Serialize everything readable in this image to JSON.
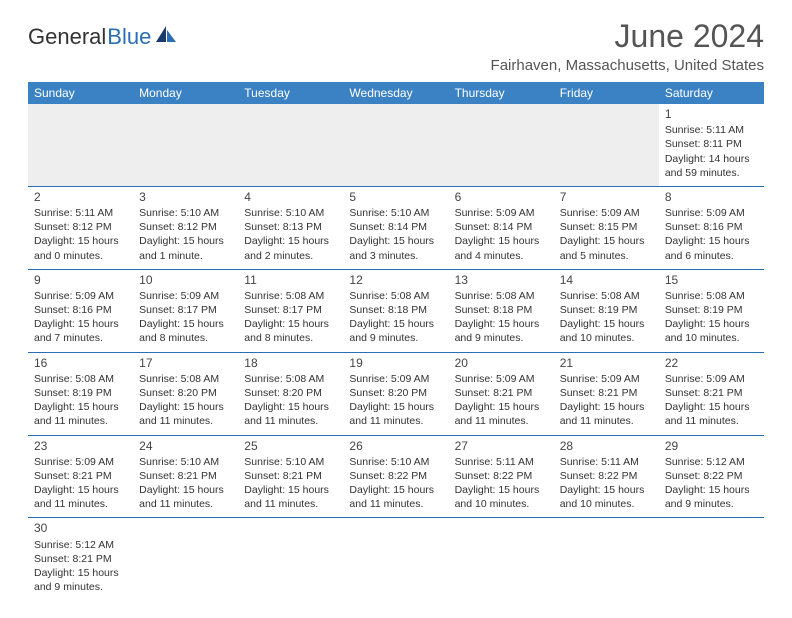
{
  "logo": {
    "part1": "General",
    "part2": "Blue"
  },
  "title": "June 2024",
  "location": "Fairhaven, Massachusetts, United States",
  "header_color": "#3b82c4",
  "rule_color": "#2a6fb5",
  "days": [
    "Sunday",
    "Monday",
    "Tuesday",
    "Wednesday",
    "Thursday",
    "Friday",
    "Saturday"
  ],
  "weeks": [
    [
      null,
      null,
      null,
      null,
      null,
      null,
      {
        "n": "1",
        "sunrise": "5:11 AM",
        "sunset": "8:11 PM",
        "daylight": "14 hours and 59 minutes."
      }
    ],
    [
      {
        "n": "2",
        "sunrise": "5:11 AM",
        "sunset": "8:12 PM",
        "daylight": "15 hours and 0 minutes."
      },
      {
        "n": "3",
        "sunrise": "5:10 AM",
        "sunset": "8:12 PM",
        "daylight": "15 hours and 1 minute."
      },
      {
        "n": "4",
        "sunrise": "5:10 AM",
        "sunset": "8:13 PM",
        "daylight": "15 hours and 2 minutes."
      },
      {
        "n": "5",
        "sunrise": "5:10 AM",
        "sunset": "8:14 PM",
        "daylight": "15 hours and 3 minutes."
      },
      {
        "n": "6",
        "sunrise": "5:09 AM",
        "sunset": "8:14 PM",
        "daylight": "15 hours and 4 minutes."
      },
      {
        "n": "7",
        "sunrise": "5:09 AM",
        "sunset": "8:15 PM",
        "daylight": "15 hours and 5 minutes."
      },
      {
        "n": "8",
        "sunrise": "5:09 AM",
        "sunset": "8:16 PM",
        "daylight": "15 hours and 6 minutes."
      }
    ],
    [
      {
        "n": "9",
        "sunrise": "5:09 AM",
        "sunset": "8:16 PM",
        "daylight": "15 hours and 7 minutes."
      },
      {
        "n": "10",
        "sunrise": "5:09 AM",
        "sunset": "8:17 PM",
        "daylight": "15 hours and 8 minutes."
      },
      {
        "n": "11",
        "sunrise": "5:08 AM",
        "sunset": "8:17 PM",
        "daylight": "15 hours and 8 minutes."
      },
      {
        "n": "12",
        "sunrise": "5:08 AM",
        "sunset": "8:18 PM",
        "daylight": "15 hours and 9 minutes."
      },
      {
        "n": "13",
        "sunrise": "5:08 AM",
        "sunset": "8:18 PM",
        "daylight": "15 hours and 9 minutes."
      },
      {
        "n": "14",
        "sunrise": "5:08 AM",
        "sunset": "8:19 PM",
        "daylight": "15 hours and 10 minutes."
      },
      {
        "n": "15",
        "sunrise": "5:08 AM",
        "sunset": "8:19 PM",
        "daylight": "15 hours and 10 minutes."
      }
    ],
    [
      {
        "n": "16",
        "sunrise": "5:08 AM",
        "sunset": "8:19 PM",
        "daylight": "15 hours and 11 minutes."
      },
      {
        "n": "17",
        "sunrise": "5:08 AM",
        "sunset": "8:20 PM",
        "daylight": "15 hours and 11 minutes."
      },
      {
        "n": "18",
        "sunrise": "5:08 AM",
        "sunset": "8:20 PM",
        "daylight": "15 hours and 11 minutes."
      },
      {
        "n": "19",
        "sunrise": "5:09 AM",
        "sunset": "8:20 PM",
        "daylight": "15 hours and 11 minutes."
      },
      {
        "n": "20",
        "sunrise": "5:09 AM",
        "sunset": "8:21 PM",
        "daylight": "15 hours and 11 minutes."
      },
      {
        "n": "21",
        "sunrise": "5:09 AM",
        "sunset": "8:21 PM",
        "daylight": "15 hours and 11 minutes."
      },
      {
        "n": "22",
        "sunrise": "5:09 AM",
        "sunset": "8:21 PM",
        "daylight": "15 hours and 11 minutes."
      }
    ],
    [
      {
        "n": "23",
        "sunrise": "5:09 AM",
        "sunset": "8:21 PM",
        "daylight": "15 hours and 11 minutes."
      },
      {
        "n": "24",
        "sunrise": "5:10 AM",
        "sunset": "8:21 PM",
        "daylight": "15 hours and 11 minutes."
      },
      {
        "n": "25",
        "sunrise": "5:10 AM",
        "sunset": "8:21 PM",
        "daylight": "15 hours and 11 minutes."
      },
      {
        "n": "26",
        "sunrise": "5:10 AM",
        "sunset": "8:22 PM",
        "daylight": "15 hours and 11 minutes."
      },
      {
        "n": "27",
        "sunrise": "5:11 AM",
        "sunset": "8:22 PM",
        "daylight": "15 hours and 10 minutes."
      },
      {
        "n": "28",
        "sunrise": "5:11 AM",
        "sunset": "8:22 PM",
        "daylight": "15 hours and 10 minutes."
      },
      {
        "n": "29",
        "sunrise": "5:12 AM",
        "sunset": "8:22 PM",
        "daylight": "15 hours and 9 minutes."
      }
    ],
    [
      {
        "n": "30",
        "sunrise": "5:12 AM",
        "sunset": "8:21 PM",
        "daylight": "15 hours and 9 minutes."
      },
      null,
      null,
      null,
      null,
      null,
      null
    ]
  ],
  "labels": {
    "sunrise": "Sunrise: ",
    "sunset": "Sunset: ",
    "daylight": "Daylight: "
  }
}
